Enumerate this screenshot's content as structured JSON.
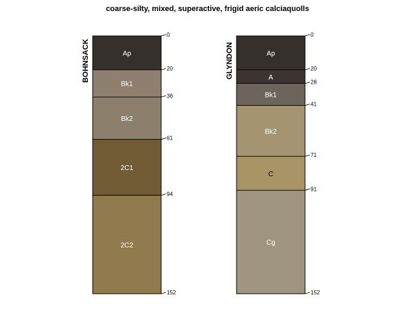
{
  "title": "coarse-silty, mixed, superactive, frigid aeric calciaquolls",
  "chart_data": {
    "type": "soil-profile",
    "title": "coarse-silty, mixed, superactive, frigid aeric calciaquolls",
    "depth_units": "cm",
    "depth_range": [
      0,
      152
    ],
    "profiles": [
      {
        "name": "BOHNSACK",
        "horizons": [
          {
            "name": "Ap",
            "top": 0,
            "bottom": 20,
            "color": "#35302c",
            "label_color": "#ffffff"
          },
          {
            "name": "Bk1",
            "top": 20,
            "bottom": 36,
            "color": "#8e7f6e",
            "label_color": "#ffffff"
          },
          {
            "name": "Bk2",
            "top": 36,
            "bottom": 61,
            "color": "#8c806c",
            "label_color": "#ffffff"
          },
          {
            "name": "2C1",
            "top": 61,
            "bottom": 94,
            "color": "#715c36",
            "label_color": "#ffffff"
          },
          {
            "name": "2C2",
            "top": 94,
            "bottom": 152,
            "color": "#917a4e",
            "label_color": "#ffffff"
          }
        ],
        "depth_labels": [
          "0",
          "20",
          "36",
          "61",
          "94",
          "152"
        ]
      },
      {
        "name": "GLYNDON",
        "horizons": [
          {
            "name": "Ap",
            "top": 0,
            "bottom": 20,
            "color": "#35302c",
            "label_color": "#ffffff"
          },
          {
            "name": "A",
            "top": 20,
            "bottom": 28,
            "color": "#3b3430",
            "label_color": "#ffffff"
          },
          {
            "name": "Bk1",
            "top": 28,
            "bottom": 41,
            "color": "#6d655b",
            "label_color": "#ffffff"
          },
          {
            "name": "Bk2",
            "top": 41,
            "bottom": 71,
            "color": "#a59471",
            "label_color": "#ffffff"
          },
          {
            "name": "C",
            "top": 71,
            "bottom": 91,
            "color": "#a99466",
            "label_color": "#000000"
          },
          {
            "name": "Cg",
            "top": 91,
            "bottom": 152,
            "color": "#a09580",
            "label_color": "#ffffff"
          }
        ],
        "depth_labels": [
          "0",
          "20",
          "28",
          "41",
          "71",
          "91",
          "152"
        ]
      }
    ]
  }
}
